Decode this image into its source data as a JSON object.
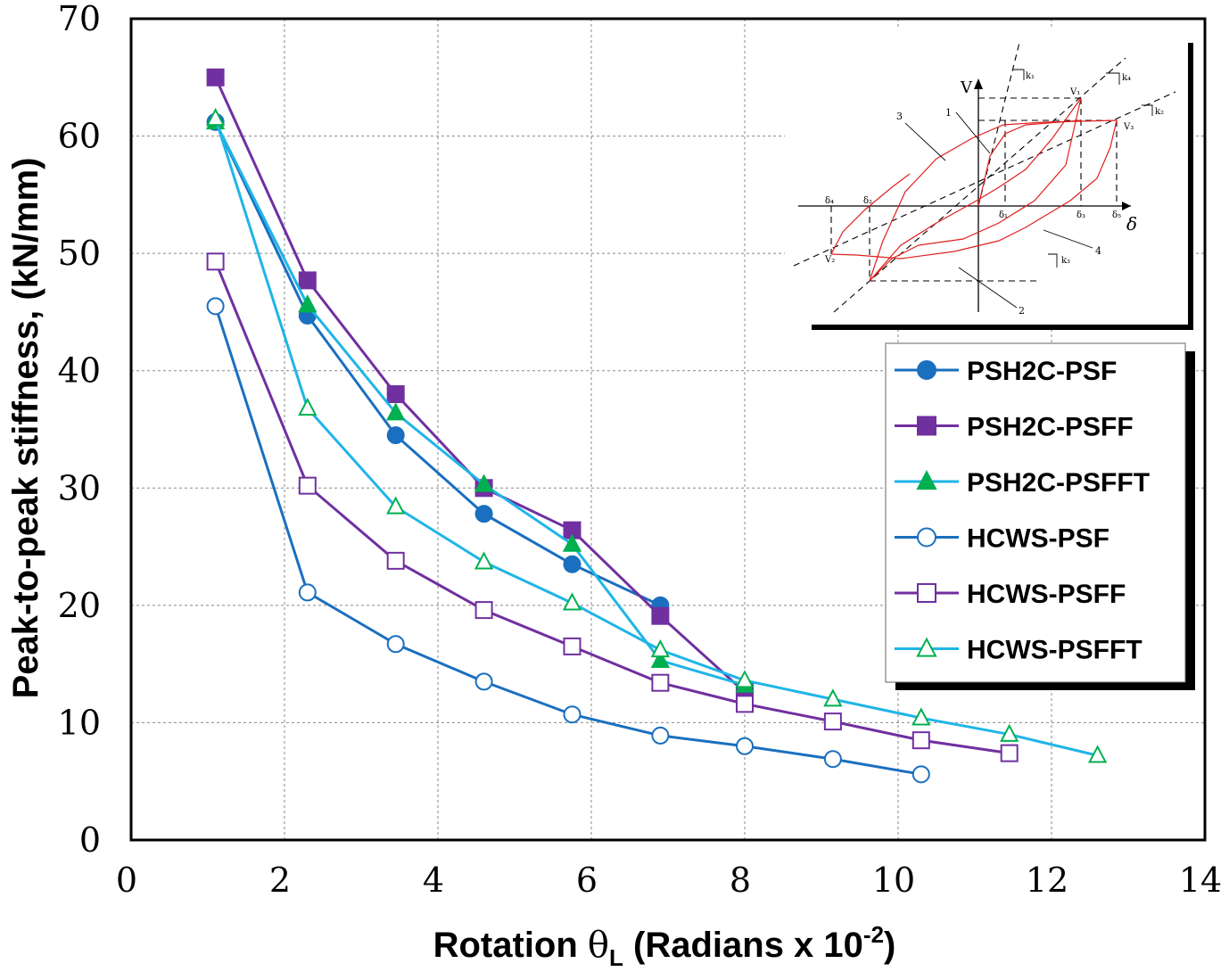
{
  "chart_data": {
    "type": "line",
    "xlabel": "Rotation θL (Radians x 10-2)",
    "xlabel_parts": {
      "pre": "Rotation ",
      "theta": "θ",
      "sub": "L",
      "mid": " (Radians x 10",
      "sup": "-2",
      "post": ")"
    },
    "ylabel": "Peak-to-peak stiffness, (kN/mm)",
    "xlim": [
      0,
      14
    ],
    "ylim": [
      0,
      70
    ],
    "xticks": [
      0,
      2,
      4,
      6,
      8,
      10,
      12,
      14
    ],
    "yticks": [
      0,
      10,
      20,
      30,
      40,
      50,
      60,
      70
    ],
    "grid": true,
    "legend_position": "right",
    "series": [
      {
        "name": "PSH2C-PSF",
        "color": "#1a6fbf",
        "marker": "circle",
        "filled": true,
        "x": [
          1.1,
          2.3,
          3.45,
          4.6,
          5.75,
          6.9
        ],
        "y": [
          61.2,
          44.7,
          34.5,
          27.8,
          23.5,
          20.0
        ]
      },
      {
        "name": "PSH2C-PSFF",
        "color": "#7030a0",
        "marker": "square",
        "filled": true,
        "x": [
          1.1,
          2.3,
          3.45,
          4.6,
          5.75,
          6.9,
          8.0
        ],
        "y": [
          65.0,
          47.7,
          38.0,
          30.0,
          26.4,
          19.1,
          12.6
        ]
      },
      {
        "name": "PSH2C-PSFFT",
        "color": "#1fb5e8",
        "marker": "triangle",
        "filled": true,
        "marker_color": "#00b050",
        "x": [
          1.1,
          2.3,
          3.45,
          4.6,
          5.75,
          6.9,
          8.0
        ],
        "y": [
          61.2,
          45.6,
          36.4,
          30.3,
          25.2,
          15.3,
          13.2
        ]
      },
      {
        "name": "HCWS-PSF",
        "color": "#1a6fbf",
        "marker": "circle",
        "filled": false,
        "x": [
          1.1,
          2.3,
          3.45,
          4.6,
          5.75,
          6.9,
          8.0,
          9.15,
          10.3
        ],
        "y": [
          45.5,
          21.1,
          16.7,
          13.5,
          10.7,
          8.9,
          8.0,
          6.9,
          5.6
        ]
      },
      {
        "name": "HCWS-PSFF",
        "color": "#7030a0",
        "marker": "square",
        "filled": false,
        "x": [
          1.1,
          2.3,
          3.45,
          4.6,
          5.75,
          6.9,
          8.0,
          9.15,
          10.3,
          11.45
        ],
        "y": [
          49.3,
          30.2,
          23.8,
          19.6,
          16.5,
          13.4,
          11.6,
          10.1,
          8.5,
          7.4
        ]
      },
      {
        "name": "HCWS-PSFFT",
        "color": "#1fb5e8",
        "marker": "triangle",
        "filled": false,
        "marker_color": "#00b050",
        "x": [
          1.1,
          2.3,
          3.45,
          4.6,
          5.75,
          6.9,
          8.0,
          9.15,
          10.3,
          11.45,
          12.6
        ],
        "y": [
          61.5,
          36.8,
          28.4,
          23.7,
          20.2,
          16.2,
          13.6,
          12.0,
          10.4,
          9.0,
          7.2
        ]
      }
    ]
  },
  "inset": {
    "axis_v": "V",
    "axis_delta": "δ",
    "region_labels": [
      "1",
      "2",
      "3",
      "4"
    ],
    "k_labels": [
      "k₁",
      "k₂",
      "k₃",
      "k₄"
    ],
    "v_labels": [
      "V₁",
      "V₂",
      "V₃"
    ],
    "delta_labels": [
      "δ₁",
      "δ₂",
      "δ₃",
      "δ₄",
      "δ₅"
    ]
  }
}
